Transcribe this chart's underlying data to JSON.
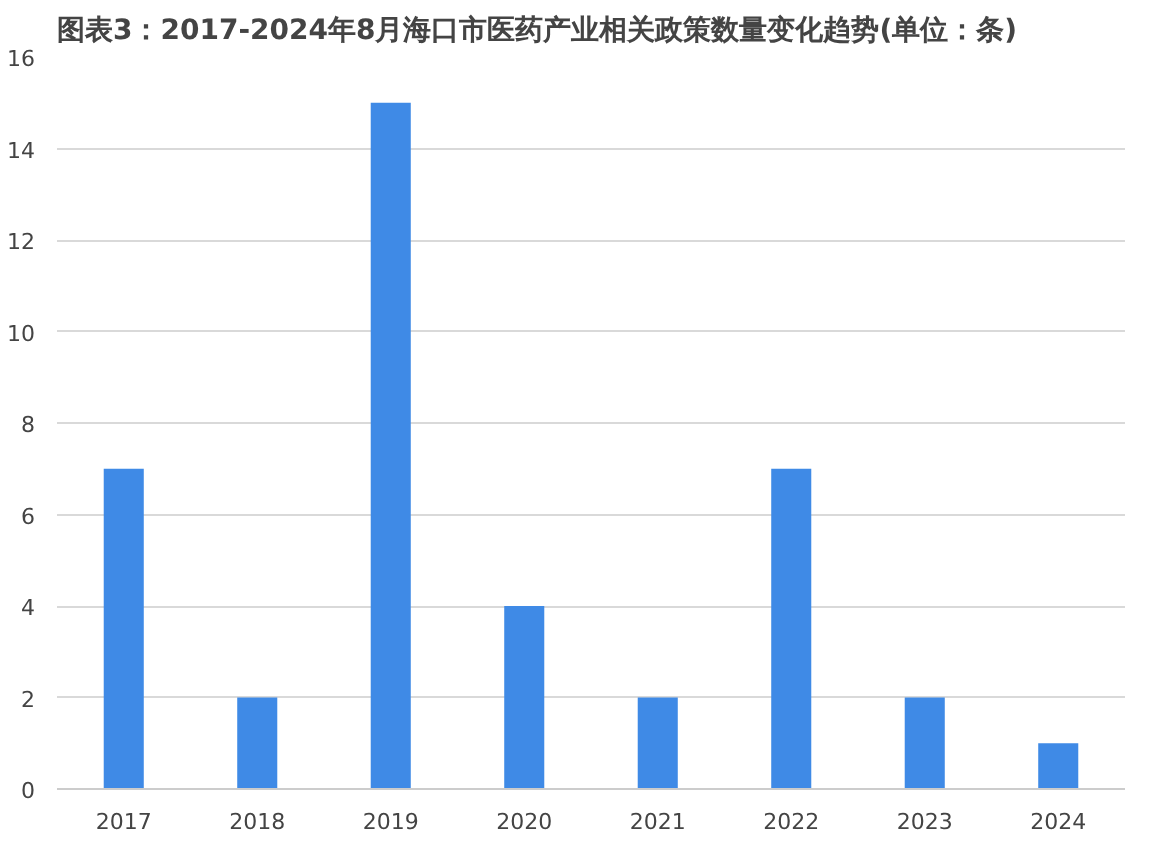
{
  "chart_data": {
    "type": "bar",
    "title": "图表3：2017-2024年8月海口市医药产业相关政策数量变化趋势(单位：条)",
    "categories": [
      "2017",
      "2018",
      "2019",
      "2020",
      "2021",
      "2022",
      "2023",
      "2024"
    ],
    "values": [
      7,
      2,
      15,
      4,
      2,
      7,
      2,
      1
    ],
    "color": "#3f8ae6",
    "ylim": [
      0,
      16
    ],
    "yticks": [
      0,
      2,
      4,
      6,
      8,
      10,
      12,
      14,
      16
    ],
    "grid": "y"
  }
}
